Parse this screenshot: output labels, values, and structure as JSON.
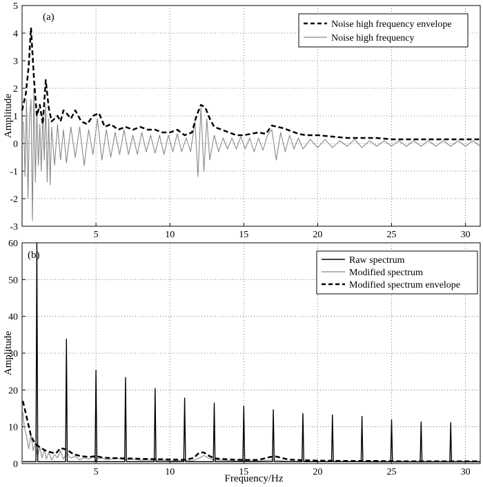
{
  "chart_data": [
    {
      "type": "line",
      "panel_label": "(a)",
      "xlabel": "",
      "ylabel": "Amplitude",
      "xlim": [
        0,
        31
      ],
      "ylim": [
        -3,
        5
      ],
      "xticks": [
        5,
        10,
        15,
        20,
        25,
        30
      ],
      "yticks": [
        -3,
        -2,
        -1,
        0,
        1,
        2,
        3,
        4,
        5
      ],
      "grid": true,
      "legend_position": "top-right",
      "series": [
        {
          "name": "Noise high frequency envelope",
          "style": "dashed",
          "color": "#000000",
          "x": [
            0,
            0.25,
            0.45,
            0.6,
            0.8,
            1.0,
            1.2,
            1.4,
            1.6,
            1.8,
            2.0,
            2.2,
            2.4,
            2.6,
            2.8,
            3.0,
            3.3,
            3.6,
            4.0,
            4.4,
            4.8,
            5.2,
            5.6,
            6.0,
            6.5,
            7.0,
            7.5,
            8.0,
            8.5,
            9.0,
            9.5,
            10.0,
            10.5,
            11.0,
            11.5,
            11.8,
            12.1,
            12.4,
            12.7,
            13.0,
            13.5,
            14.0,
            14.5,
            15.0,
            15.5,
            16.0,
            16.5,
            16.9,
            17.3,
            17.7,
            18.2,
            18.7,
            19.2,
            20.0,
            21.0,
            22.0,
            23.0,
            24.0,
            25.0,
            26.0,
            27.0,
            28.0,
            29.0,
            30.0,
            31.0
          ],
          "values": [
            1.2,
            1.8,
            2.8,
            4.2,
            2.4,
            1.0,
            1.4,
            0.7,
            2.3,
            1.3,
            0.8,
            0.9,
            1.0,
            0.8,
            1.2,
            1.1,
            0.9,
            1.2,
            0.8,
            0.7,
            1.0,
            1.1,
            0.6,
            0.7,
            0.5,
            0.6,
            0.5,
            0.6,
            0.5,
            0.5,
            0.4,
            0.4,
            0.5,
            0.3,
            0.4,
            1.0,
            1.4,
            1.3,
            0.9,
            0.6,
            0.5,
            0.4,
            0.3,
            0.3,
            0.35,
            0.4,
            0.35,
            0.65,
            0.6,
            0.55,
            0.45,
            0.35,
            0.3,
            0.3,
            0.25,
            0.2,
            0.2,
            0.2,
            0.15,
            0.15,
            0.15,
            0.15,
            0.15,
            0.15,
            0.15
          ]
        },
        {
          "name": "Noise high frequency",
          "style": "solid",
          "color": "#888888",
          "x": [
            0.1,
            0.2,
            0.3,
            0.4,
            0.5,
            0.6,
            0.7,
            0.8,
            0.9,
            1.0,
            1.1,
            1.2,
            1.3,
            1.4,
            1.5,
            1.6,
            1.7,
            1.8,
            1.9,
            2.0,
            2.2,
            2.4,
            2.6,
            2.8,
            3.0,
            3.3,
            3.6,
            3.9,
            4.2,
            4.5,
            4.8,
            5.1,
            5.4,
            5.7,
            6.0,
            6.3,
            6.6,
            6.9,
            7.2,
            7.5,
            7.8,
            8.1,
            8.4,
            8.7,
            9.0,
            9.3,
            9.6,
            9.9,
            10.2,
            10.5,
            10.8,
            11.1,
            11.4,
            11.7,
            11.9,
            12.1,
            12.3,
            12.5,
            12.7,
            13.0,
            13.3,
            13.6,
            13.9,
            14.2,
            14.5,
            14.8,
            15.1,
            15.4,
            15.7,
            16.0,
            16.3,
            16.6,
            16.9,
            17.2,
            17.5,
            17.8,
            18.1,
            18.4,
            18.7,
            19.0,
            19.5,
            20.0,
            20.5,
            21.0,
            21.5,
            22.0,
            22.5,
            23.0,
            23.5,
            24.0,
            24.5,
            25.0,
            25.5,
            26.0,
            26.5,
            27.0,
            27.5,
            28.0,
            28.5,
            29.0,
            29.5,
            30.0,
            30.5,
            31.0
          ],
          "values": [
            0.8,
            -1.2,
            1.6,
            -2.0,
            0.9,
            1.6,
            -2.8,
            2.0,
            -1.4,
            1.2,
            -0.8,
            0.7,
            -1.0,
            1.1,
            -0.6,
            1.4,
            -1.4,
            0.9,
            -1.5,
            0.6,
            -0.8,
            0.7,
            -0.6,
            0.5,
            -0.7,
            0.6,
            -0.5,
            0.6,
            -0.8,
            0.5,
            -0.4,
            0.9,
            -0.6,
            0.5,
            -0.5,
            0.4,
            -0.4,
            0.5,
            -0.4,
            0.3,
            -0.4,
            0.4,
            -0.3,
            0.3,
            -0.35,
            0.3,
            -0.4,
            0.3,
            -0.3,
            0.35,
            -0.3,
            0.2,
            -0.3,
            0.8,
            -1.2,
            1.3,
            -1.0,
            0.9,
            -0.6,
            0.3,
            -0.3,
            0.2,
            -0.2,
            0.2,
            -0.2,
            0.25,
            -0.2,
            0.2,
            -0.3,
            0.2,
            -0.25,
            0.3,
            0.5,
            -0.6,
            0.4,
            -0.3,
            0.3,
            -0.2,
            0.2,
            -0.2,
            0.15,
            -0.15,
            0.15,
            -0.15,
            0.1,
            -0.1,
            0.15,
            -0.15,
            0.1,
            -0.1,
            0.1,
            -0.1,
            0.1,
            -0.1,
            0.1,
            -0.1,
            0.1,
            -0.1,
            0.1,
            -0.1,
            0.1,
            -0.1,
            0.1,
            -0.1
          ]
        }
      ]
    },
    {
      "type": "line",
      "panel_label": "(b)",
      "xlabel": "Frequency/Hz",
      "ylabel": "Amplitude",
      "xlim": [
        0,
        31
      ],
      "ylim": [
        0,
        60
      ],
      "xticks": [
        5,
        10,
        15,
        20,
        25,
        30
      ],
      "yticks": [
        0,
        10,
        20,
        30,
        40,
        50,
        60
      ],
      "grid": true,
      "legend_position": "top-right",
      "series": [
        {
          "name": "Raw spectrum",
          "style": "solid",
          "color": "#000000",
          "peaks_x": [
            1,
            3,
            5,
            7,
            9,
            11,
            13,
            15,
            17,
            19,
            21,
            23,
            25,
            27,
            29
          ],
          "peaks_y": [
            60,
            33.8,
            25.4,
            23.4,
            20.4,
            17.8,
            16.4,
            15.6,
            14.6,
            13.6,
            13.2,
            12.8,
            11.9,
            11.3,
            11.1
          ],
          "baseline": 0.5
        },
        {
          "name": "Modified spectrum",
          "style": "solid",
          "color": "#888888",
          "x": [
            0.05,
            0.15,
            0.3,
            0.45,
            0.6,
            0.75,
            0.9,
            1.05,
            1.2,
            1.35,
            1.5,
            1.65,
            1.8,
            2.0,
            2.2,
            2.4,
            2.6,
            2.8,
            3.0,
            3.3,
            3.6,
            3.9,
            4.2,
            4.5,
            4.8,
            5.1,
            5.4,
            5.7,
            6.0,
            6.5,
            7.0,
            7.5,
            8.0,
            8.5,
            9.0,
            9.5,
            10.0,
            10.5,
            11.0,
            11.5,
            12.0,
            12.3,
            12.6,
            13.0,
            14.0,
            15.0,
            16.0,
            17.0,
            18.0,
            19.0,
            20.0,
            22.0,
            24.0,
            26.0,
            28.0,
            30.0,
            31.0
          ],
          "values": [
            14.0,
            10.0,
            7.5,
            4.0,
            8.0,
            3.5,
            5.5,
            2.0,
            4.5,
            1.5,
            3.8,
            1.2,
            3.0,
            1.0,
            2.5,
            1.5,
            3.5,
            1.2,
            2.8,
            1.5,
            2.0,
            1.0,
            1.6,
            1.2,
            1.8,
            1.3,
            1.5,
            1.0,
            1.2,
            1.4,
            1.0,
            1.2,
            0.9,
            1.0,
            0.8,
            0.9,
            0.8,
            0.7,
            0.9,
            0.7,
            1.5,
            2.2,
            1.5,
            1.0,
            0.8,
            0.7,
            0.7,
            1.0,
            0.6,
            0.6,
            0.5,
            0.5,
            0.4,
            0.4,
            0.4,
            0.4,
            0.4
          ]
        },
        {
          "name": "Modified spectrum envelope",
          "style": "dashed",
          "color": "#000000",
          "x": [
            0.05,
            0.2,
            0.4,
            0.6,
            0.8,
            1.0,
            1.3,
            1.6,
            2.0,
            2.3,
            2.6,
            3.0,
            3.5,
            4.0,
            4.5,
            5.0,
            5.5,
            6.0,
            7.0,
            8.0,
            9.0,
            10.0,
            11.0,
            11.6,
            12.0,
            12.3,
            12.6,
            13.0,
            14.0,
            15.0,
            16.0,
            16.8,
            17.2,
            18.0,
            19.0,
            20.0,
            22.0,
            24.0,
            26.0,
            28.0,
            31.0
          ],
          "values": [
            17.0,
            14.5,
            11.0,
            7.5,
            6.0,
            5.0,
            4.2,
            3.5,
            3.0,
            2.8,
            4.2,
            3.8,
            2.5,
            2.0,
            1.8,
            2.0,
            1.6,
            1.5,
            1.4,
            1.3,
            1.2,
            1.1,
            1.0,
            1.5,
            3.0,
            3.0,
            2.2,
            1.4,
            1.1,
            1.0,
            1.0,
            1.8,
            1.9,
            1.1,
            0.9,
            0.8,
            0.7,
            0.7,
            0.6,
            0.6,
            0.6
          ]
        }
      ]
    }
  ]
}
